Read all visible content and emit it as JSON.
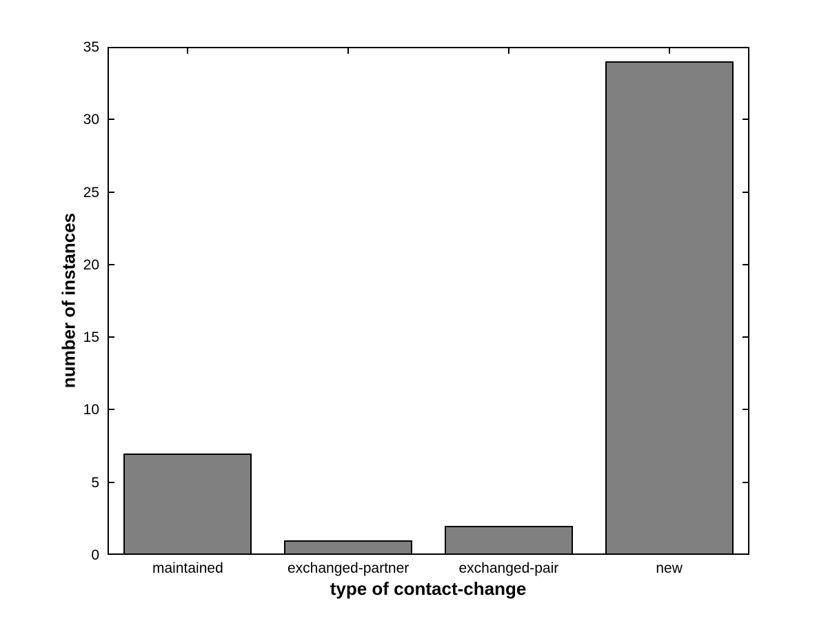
{
  "chart_data": {
    "type": "bar",
    "title": "",
    "categories": [
      "maintained",
      "exchanged-partner",
      "exchanged-pair",
      "new"
    ],
    "values": [
      7,
      1,
      2,
      34
    ],
    "xlabel": "type of contact-change",
    "ylabel": "number of instances",
    "ylim": [
      0,
      35
    ],
    "yticks": [
      0,
      5,
      10,
      15,
      20,
      25,
      30,
      35
    ],
    "bar_width_fraction": 0.8,
    "bar_color": "#808080",
    "bar_edge_color": "#000000",
    "axis_color": "#000000",
    "background_color": "#ffffff",
    "grid": false,
    "legend_position": "none",
    "tick_direction": "in",
    "box": true
  }
}
